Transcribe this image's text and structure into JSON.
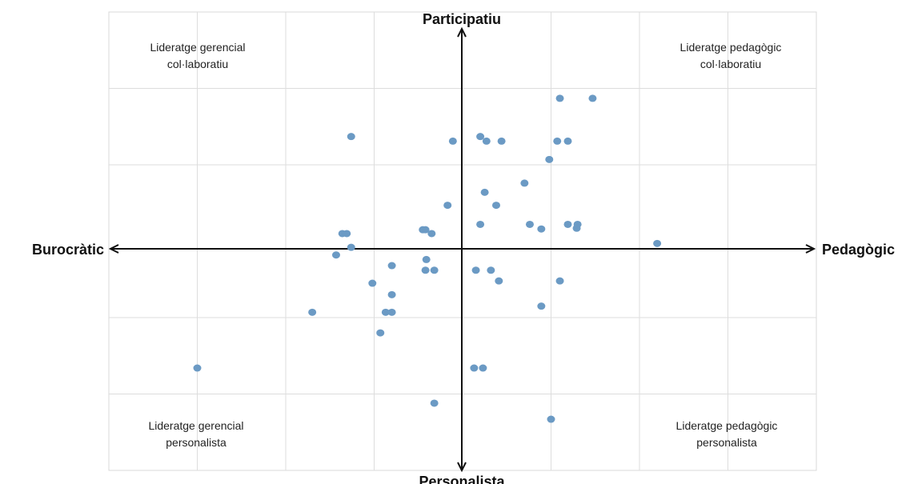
{
  "chart_data": {
    "type": "scatter",
    "title": "",
    "axes": {
      "x_negative_label": "Burocràtic",
      "x_positive_label": "Pedagògic",
      "y_positive_label": "Participatiu",
      "y_negative_label": "Personalista"
    },
    "xlim": [
      -4,
      4
    ],
    "ylim": [
      -3,
      3
    ],
    "grid": true,
    "quadrant_labels": {
      "top_left": [
        "Lideratge gerencial",
        "col·laboratiu"
      ],
      "top_right": [
        "Lideratge pedagògic",
        "col·laboratiu"
      ],
      "bottom_left": [
        "Lideratge gerencial",
        "personalista"
      ],
      "bottom_right": [
        "Lideratge pedagògic",
        "personalista"
      ]
    },
    "point_color": "#6b9ac4",
    "points": [
      {
        "x": 1.1,
        "y": 1.87
      },
      {
        "x": 1.47,
        "y": 1.87
      },
      {
        "x": -1.26,
        "y": 1.37
      },
      {
        "x": -0.11,
        "y": 1.31
      },
      {
        "x": 0.2,
        "y": 1.37
      },
      {
        "x": 0.27,
        "y": 1.31
      },
      {
        "x": 0.44,
        "y": 1.31
      },
      {
        "x": 1.07,
        "y": 1.31
      },
      {
        "x": 1.19,
        "y": 1.31
      },
      {
        "x": 0.98,
        "y": 1.07
      },
      {
        "x": 0.7,
        "y": 0.76
      },
      {
        "x": 0.25,
        "y": 0.64
      },
      {
        "x": -0.17,
        "y": 0.47
      },
      {
        "x": 0.38,
        "y": 0.47
      },
      {
        "x": 0.2,
        "y": 0.22
      },
      {
        "x": 0.76,
        "y": 0.22
      },
      {
        "x": 0.89,
        "y": 0.16
      },
      {
        "x": 1.19,
        "y": 0.22
      },
      {
        "x": 1.3,
        "y": 0.22
      },
      {
        "x": 1.29,
        "y": 0.17
      },
      {
        "x": -1.36,
        "y": 0.1
      },
      {
        "x": -1.31,
        "y": 0.1
      },
      {
        "x": -0.45,
        "y": 0.15
      },
      {
        "x": -0.42,
        "y": 0.15
      },
      {
        "x": -0.35,
        "y": 0.1
      },
      {
        "x": 2.2,
        "y": -0.03
      },
      {
        "x": -1.43,
        "y": -0.18
      },
      {
        "x": -1.26,
        "y": -0.08
      },
      {
        "x": -0.41,
        "y": -0.24
      },
      {
        "x": -0.8,
        "y": -0.32
      },
      {
        "x": -0.42,
        "y": -0.38
      },
      {
        "x": -0.32,
        "y": -0.38
      },
      {
        "x": 0.15,
        "y": -0.38
      },
      {
        "x": 0.32,
        "y": -0.38
      },
      {
        "x": -1.02,
        "y": -0.55
      },
      {
        "x": 0.41,
        "y": -0.52
      },
      {
        "x": 1.1,
        "y": -0.52
      },
      {
        "x": -0.8,
        "y": -0.7
      },
      {
        "x": 0.89,
        "y": -0.85
      },
      {
        "x": -1.7,
        "y": -0.93
      },
      {
        "x": -0.87,
        "y": -0.93
      },
      {
        "x": -0.8,
        "y": -0.93
      },
      {
        "x": -0.93,
        "y": -1.2
      },
      {
        "x": -3.0,
        "y": -1.66
      },
      {
        "x": 0.13,
        "y": -1.66
      },
      {
        "x": 0.23,
        "y": -1.66
      },
      {
        "x": -0.32,
        "y": -2.12
      },
      {
        "x": 1.0,
        "y": -2.33
      }
    ]
  }
}
